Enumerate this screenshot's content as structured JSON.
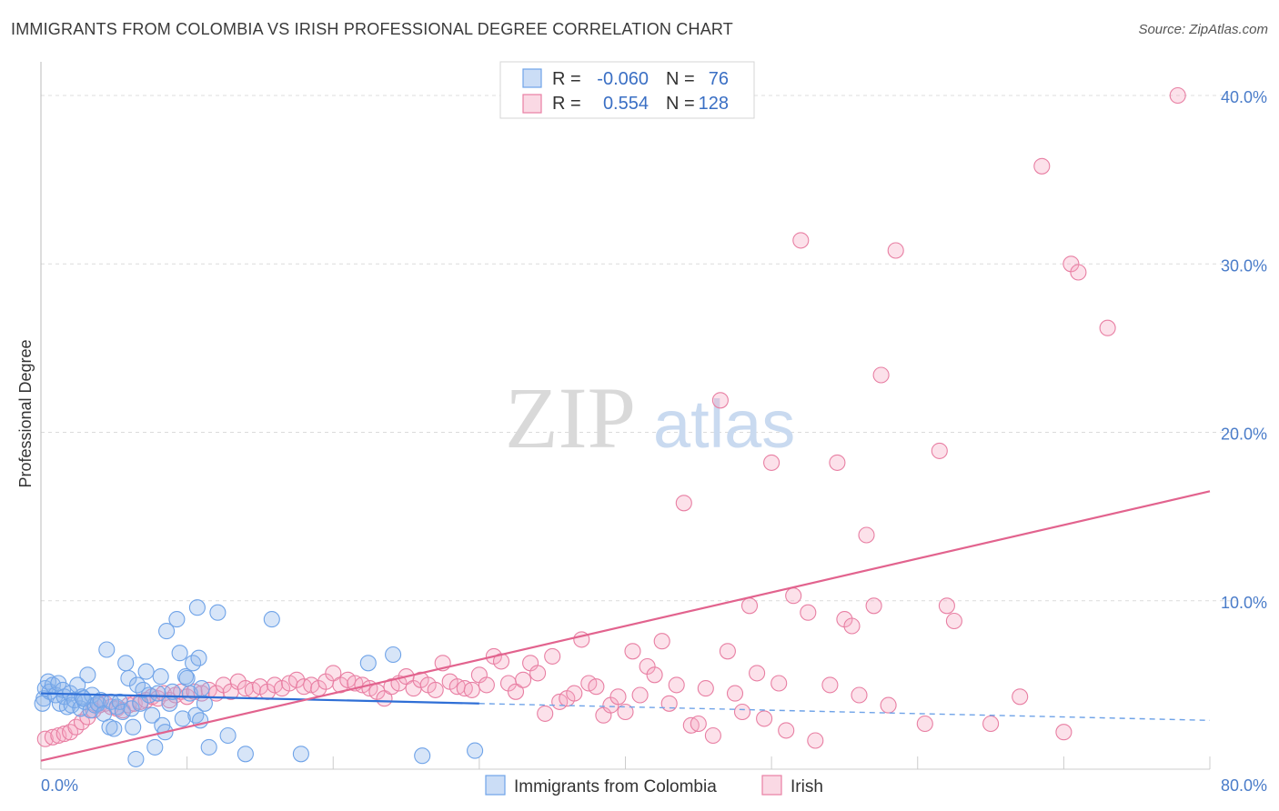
{
  "header": {
    "title": "IMMIGRANTS FROM COLOMBIA VS IRISH PROFESSIONAL DEGREE CORRELATION CHART",
    "source": "Source: ZipAtlas.com"
  },
  "watermark": {
    "zip": "ZIP",
    "atlas": "atlas"
  },
  "legend": {
    "rows": [
      {
        "r_label": "R =",
        "r_value": "-0.060",
        "n_label": "N =",
        "n_value": "76"
      },
      {
        "r_label": "R =",
        "r_value": "0.554",
        "n_label": "N =",
        "n_value": "128"
      }
    ]
  },
  "chart_data": {
    "type": "scatter",
    "title": "IMMIGRANTS FROM COLOMBIA VS IRISH PROFESSIONAL DEGREE CORRELATION CHART",
    "xlabel": "",
    "ylabel": "Professional Degree",
    "xlim": [
      0,
      80
    ],
    "ylim": [
      0,
      42
    ],
    "x_tick_labels": [
      "0.0%",
      "80.0%"
    ],
    "y_ticks": [
      10,
      20,
      30,
      40
    ],
    "y_tick_labels": [
      "10.0%",
      "20.0%",
      "30.0%",
      "40.0%"
    ],
    "grid": true,
    "legend_position": "top-center",
    "series": [
      {
        "name": "Immigrants from Colombia",
        "color": "#6fa3e8",
        "fill": "rgba(140,180,235,0.35)",
        "r": -0.06,
        "n": 76,
        "trend": {
          "x0": 0,
          "y0": 4.5,
          "x1": 30,
          "y1": 3.9,
          "dash_to": 80,
          "dash_y": 2.9
        },
        "points": [
          [
            0.2,
            4.2
          ],
          [
            0.3,
            4.8
          ],
          [
            0.5,
            5.2
          ],
          [
            0.6,
            4.6
          ],
          [
            0.8,
            5.0
          ],
          [
            1.0,
            4.4
          ],
          [
            1.2,
            5.1
          ],
          [
            1.3,
            3.9
          ],
          [
            1.5,
            4.7
          ],
          [
            1.6,
            4.3
          ],
          [
            1.8,
            3.7
          ],
          [
            2.0,
            4.5
          ],
          [
            2.1,
            3.8
          ],
          [
            2.3,
            4.1
          ],
          [
            2.5,
            5.0
          ],
          [
            2.7,
            3.6
          ],
          [
            2.8,
            4.3
          ],
          [
            3.0,
            4.0
          ],
          [
            3.2,
            5.6
          ],
          [
            3.4,
            3.5
          ],
          [
            3.5,
            4.4
          ],
          [
            3.7,
            3.8
          ],
          [
            3.9,
            3.9
          ],
          [
            4.1,
            4.1
          ],
          [
            4.3,
            3.3
          ],
          [
            4.5,
            7.1
          ],
          [
            4.7,
            2.5
          ],
          [
            4.8,
            4.0
          ],
          [
            5.0,
            2.4
          ],
          [
            5.2,
            3.7
          ],
          [
            5.4,
            4.0
          ],
          [
            5.6,
            3.4
          ],
          [
            5.8,
            6.3
          ],
          [
            6.0,
            5.4
          ],
          [
            6.2,
            3.6
          ],
          [
            6.3,
            2.5
          ],
          [
            6.5,
            0.6
          ],
          [
            6.6,
            5.0
          ],
          [
            6.8,
            3.9
          ],
          [
            7.0,
            4.7
          ],
          [
            7.2,
            5.8
          ],
          [
            7.4,
            4.4
          ],
          [
            7.6,
            3.2
          ],
          [
            7.8,
            1.3
          ],
          [
            8.0,
            4.5
          ],
          [
            8.2,
            5.5
          ],
          [
            8.3,
            2.6
          ],
          [
            8.5,
            2.2
          ],
          [
            8.6,
            8.2
          ],
          [
            8.8,
            3.9
          ],
          [
            9.0,
            4.6
          ],
          [
            9.3,
            8.9
          ],
          [
            9.5,
            6.9
          ],
          [
            9.7,
            3.0
          ],
          [
            9.9,
            5.5
          ],
          [
            10.0,
            5.4
          ],
          [
            10.2,
            4.5
          ],
          [
            10.4,
            6.3
          ],
          [
            10.6,
            3.2
          ],
          [
            10.7,
            9.6
          ],
          [
            10.8,
            6.6
          ],
          [
            10.9,
            2.9
          ],
          [
            11.0,
            4.8
          ],
          [
            11.2,
            3.9
          ],
          [
            11.5,
            1.3
          ],
          [
            12.1,
            9.3
          ],
          [
            12.8,
            2.0
          ],
          [
            14.0,
            0.9
          ],
          [
            15.8,
            8.9
          ],
          [
            17.8,
            0.9
          ],
          [
            22.4,
            6.3
          ],
          [
            24.1,
            6.8
          ],
          [
            26.1,
            0.8
          ],
          [
            29.7,
            1.1
          ],
          [
            0.1,
            3.9
          ],
          [
            2.9,
            4.2
          ]
        ]
      },
      {
        "name": "Irish",
        "color": "#e87fa3",
        "fill": "rgba(245,170,195,0.35)",
        "r": 0.554,
        "n": 128,
        "trend": {
          "x0": 0,
          "y0": 0.5,
          "x1": 80,
          "y1": 16.5
        },
        "points": [
          [
            0.3,
            1.8
          ],
          [
            0.8,
            1.9
          ],
          [
            1.2,
            2.0
          ],
          [
            1.6,
            2.1
          ],
          [
            2.0,
            2.2
          ],
          [
            2.4,
            2.5
          ],
          [
            2.8,
            2.8
          ],
          [
            3.2,
            3.1
          ],
          [
            3.6,
            3.5
          ],
          [
            4.0,
            3.8
          ],
          [
            4.4,
            3.9
          ],
          [
            4.8,
            3.7
          ],
          [
            5.2,
            3.6
          ],
          [
            5.6,
            3.5
          ],
          [
            6.0,
            3.8
          ],
          [
            6.4,
            3.9
          ],
          [
            6.8,
            4.0
          ],
          [
            7.2,
            4.1
          ],
          [
            7.6,
            4.3
          ],
          [
            8.0,
            4.2
          ],
          [
            8.4,
            4.5
          ],
          [
            8.8,
            4.1
          ],
          [
            9.2,
            4.4
          ],
          [
            9.6,
            4.6
          ],
          [
            10.0,
            4.3
          ],
          [
            10.5,
            4.6
          ],
          [
            11.0,
            4.5
          ],
          [
            11.5,
            4.7
          ],
          [
            12.0,
            4.5
          ],
          [
            12.5,
            5.0
          ],
          [
            13.0,
            4.6
          ],
          [
            13.5,
            5.2
          ],
          [
            14.0,
            4.8
          ],
          [
            14.5,
            4.7
          ],
          [
            15.0,
            4.9
          ],
          [
            15.5,
            4.6
          ],
          [
            16.0,
            5.0
          ],
          [
            16.5,
            4.8
          ],
          [
            17.0,
            5.1
          ],
          [
            17.5,
            5.3
          ],
          [
            18.0,
            4.9
          ],
          [
            18.5,
            5.0
          ],
          [
            19.0,
            4.8
          ],
          [
            19.5,
            5.2
          ],
          [
            20.0,
            5.7
          ],
          [
            20.5,
            5.0
          ],
          [
            21.0,
            5.3
          ],
          [
            21.5,
            5.1
          ],
          [
            22.0,
            5.0
          ],
          [
            22.5,
            4.8
          ],
          [
            23.0,
            4.6
          ],
          [
            23.5,
            4.2
          ],
          [
            24.0,
            4.9
          ],
          [
            24.5,
            5.1
          ],
          [
            25.0,
            5.5
          ],
          [
            25.5,
            4.8
          ],
          [
            26.0,
            5.3
          ],
          [
            26.5,
            5.0
          ],
          [
            27.0,
            4.7
          ],
          [
            27.5,
            6.3
          ],
          [
            28.0,
            5.2
          ],
          [
            28.5,
            4.9
          ],
          [
            29.0,
            4.8
          ],
          [
            29.5,
            4.7
          ],
          [
            30.0,
            5.6
          ],
          [
            30.5,
            5.0
          ],
          [
            31.0,
            6.7
          ],
          [
            31.5,
            6.4
          ],
          [
            32.0,
            5.1
          ],
          [
            32.5,
            4.6
          ],
          [
            33.0,
            5.3
          ],
          [
            33.5,
            6.3
          ],
          [
            34.0,
            5.7
          ],
          [
            34.5,
            3.3
          ],
          [
            35.0,
            6.7
          ],
          [
            35.5,
            4.0
          ],
          [
            36.0,
            4.2
          ],
          [
            36.5,
            4.5
          ],
          [
            37.0,
            7.7
          ],
          [
            37.5,
            5.1
          ],
          [
            38.0,
            4.9
          ],
          [
            38.5,
            3.2
          ],
          [
            39.0,
            3.8
          ],
          [
            39.5,
            4.3
          ],
          [
            40.0,
            3.4
          ],
          [
            40.5,
            7.0
          ],
          [
            41.0,
            4.4
          ],
          [
            41.5,
            6.1
          ],
          [
            42.0,
            5.6
          ],
          [
            42.5,
            7.6
          ],
          [
            43.0,
            3.9
          ],
          [
            43.5,
            5.0
          ],
          [
            44.0,
            15.8
          ],
          [
            44.5,
            2.6
          ],
          [
            45.0,
            2.7
          ],
          [
            45.5,
            4.8
          ],
          [
            46.0,
            2.0
          ],
          [
            46.5,
            21.9
          ],
          [
            47.0,
            7.0
          ],
          [
            47.5,
            4.5
          ],
          [
            48.0,
            3.4
          ],
          [
            48.5,
            9.7
          ],
          [
            49.0,
            5.7
          ],
          [
            49.5,
            3.0
          ],
          [
            50.0,
            18.2
          ],
          [
            50.5,
            5.1
          ],
          [
            51.0,
            2.3
          ],
          [
            51.5,
            10.3
          ],
          [
            52.0,
            31.4
          ],
          [
            52.5,
            9.3
          ],
          [
            53.0,
            1.7
          ],
          [
            54.0,
            5.0
          ],
          [
            54.5,
            18.2
          ],
          [
            55.0,
            8.9
          ],
          [
            55.5,
            8.5
          ],
          [
            56.0,
            4.4
          ],
          [
            56.5,
            13.9
          ],
          [
            57.0,
            9.7
          ],
          [
            57.5,
            23.4
          ],
          [
            58.0,
            3.8
          ],
          [
            58.5,
            30.8
          ],
          [
            60.5,
            2.7
          ],
          [
            61.5,
            18.9
          ],
          [
            62.0,
            9.7
          ],
          [
            62.5,
            8.8
          ],
          [
            65.0,
            2.7
          ],
          [
            67.0,
            4.3
          ],
          [
            68.5,
            35.8
          ],
          [
            70.0,
            2.2
          ],
          [
            70.5,
            30.0
          ],
          [
            71.0,
            29.5
          ],
          [
            73.0,
            26.2
          ],
          [
            77.8,
            40.0
          ]
        ]
      }
    ]
  },
  "bottom_legend": [
    {
      "label": "Immigrants from Colombia"
    },
    {
      "label": "Irish"
    }
  ]
}
